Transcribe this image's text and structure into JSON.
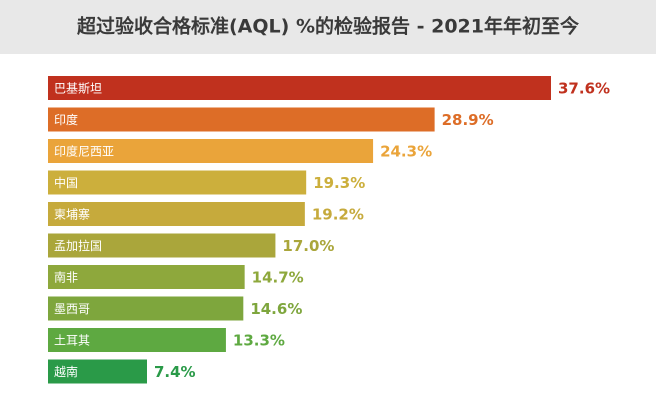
{
  "chart_data": {
    "type": "bar",
    "orientation": "horizontal",
    "title": "超过验收合格标准(AQL) %的检验报告 - 2021年年初至今",
    "categories": [
      "巴基斯坦",
      "印度",
      "印度尼西亚",
      "中国",
      "柬埔寨",
      "孟加拉国",
      "南非",
      "墨西哥",
      "土耳其",
      "越南"
    ],
    "values": [
      37.6,
      28.9,
      24.3,
      19.3,
      19.2,
      17.0,
      14.7,
      14.6,
      13.3,
      7.4
    ],
    "value_labels": [
      "37.6%",
      "28.9%",
      "24.3%",
      "19.3%",
      "19.2%",
      "17.0%",
      "14.7%",
      "14.6%",
      "13.3%",
      "7.4%"
    ],
    "colors": [
      "#c0311e",
      "#dd6d27",
      "#eaa43a",
      "#ccaf3c",
      "#c6aa3c",
      "#aaa63b",
      "#8ea83c",
      "#7ea63d",
      "#5ea941",
      "#2a9a48"
    ]
  }
}
